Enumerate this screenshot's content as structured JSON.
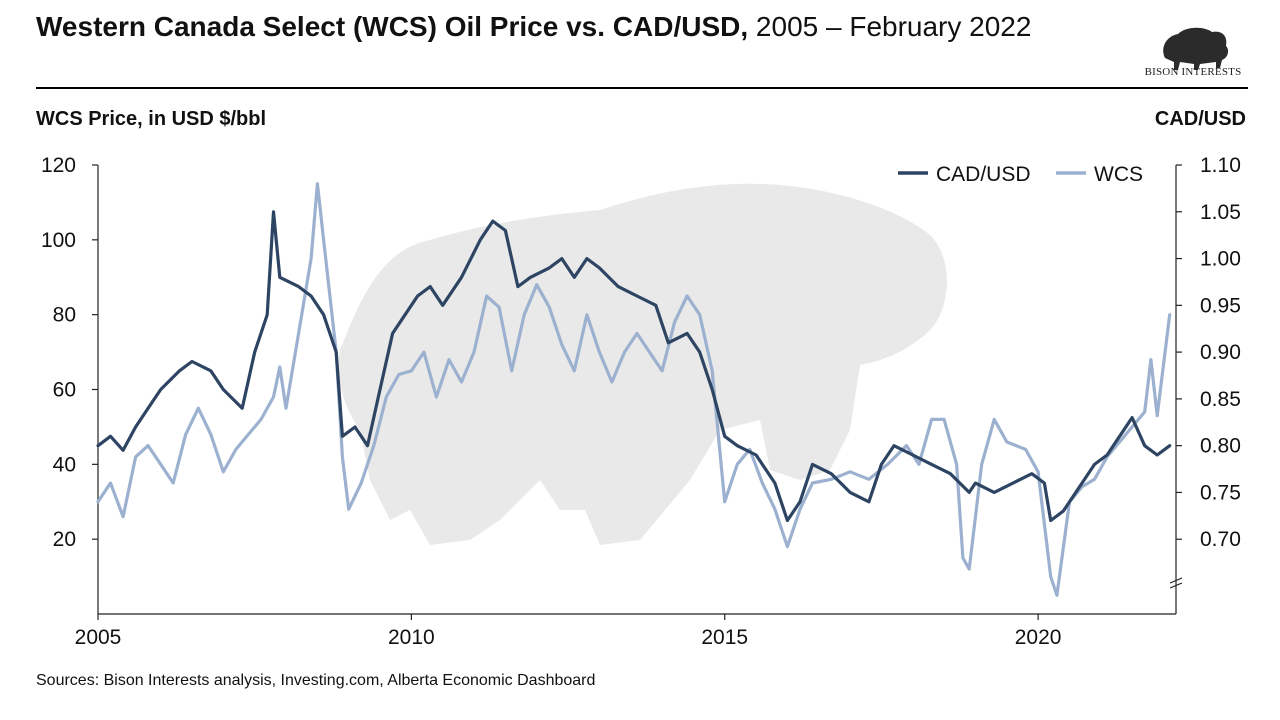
{
  "header": {
    "title_bold": "Western Canada Select (WCS) Oil Price vs. CAD/USD,",
    "title_rest": " 2005 – February 2022"
  },
  "logo": {
    "text": "BISON INTERESTS",
    "icon": "bison-icon"
  },
  "axes": {
    "left_title": "WCS Price, in USD $/bbl",
    "right_title": "CAD/USD"
  },
  "footer": {
    "source": "Sources: Bison Interests analysis, Investing.com, Alberta Economic Dashboard"
  },
  "colors": {
    "cad_usd": "#2d4463",
    "wcs": "#9cb1cf",
    "axis": "#222222",
    "watermark": "#e8e8e8"
  },
  "chart_data": {
    "type": "line",
    "x_range": [
      2005.0,
      2022.2
    ],
    "x_ticks": [
      "2005",
      "2010",
      "2015",
      "2020"
    ],
    "ylim_left": [
      0,
      120
    ],
    "yticks_left": [
      "20",
      "40",
      "60",
      "80",
      "100",
      "120"
    ],
    "ylim_right": [
      0.65,
      1.1
    ],
    "yticks_right": [
      "0.70",
      "0.75",
      "0.80",
      "0.85",
      "0.90",
      "0.95",
      "1.00",
      "1.05",
      "1.10"
    ],
    "legend": {
      "position": "top-right",
      "entries": [
        "CAD/USD",
        "WCS"
      ]
    },
    "grid": false,
    "series": [
      {
        "name": "CAD/USD",
        "axis": "right",
        "points": [
          [
            2005.0,
            0.8
          ],
          [
            2005.2,
            0.81
          ],
          [
            2005.4,
            0.795
          ],
          [
            2005.6,
            0.82
          ],
          [
            2005.8,
            0.84
          ],
          [
            2006.0,
            0.86
          ],
          [
            2006.3,
            0.88
          ],
          [
            2006.5,
            0.89
          ],
          [
            2006.8,
            0.88
          ],
          [
            2007.0,
            0.86
          ],
          [
            2007.3,
            0.84
          ],
          [
            2007.5,
            0.9
          ],
          [
            2007.7,
            0.94
          ],
          [
            2007.8,
            1.05
          ],
          [
            2007.9,
            0.98
          ],
          [
            2008.2,
            0.97
          ],
          [
            2008.4,
            0.96
          ],
          [
            2008.6,
            0.94
          ],
          [
            2008.8,
            0.9
          ],
          [
            2008.9,
            0.81
          ],
          [
            2009.1,
            0.82
          ],
          [
            2009.3,
            0.8
          ],
          [
            2009.5,
            0.86
          ],
          [
            2009.7,
            0.92
          ],
          [
            2009.9,
            0.94
          ],
          [
            2010.1,
            0.96
          ],
          [
            2010.3,
            0.97
          ],
          [
            2010.5,
            0.95
          ],
          [
            2010.8,
            0.98
          ],
          [
            2011.1,
            1.02
          ],
          [
            2011.3,
            1.04
          ],
          [
            2011.5,
            1.03
          ],
          [
            2011.7,
            0.97
          ],
          [
            2011.9,
            0.98
          ],
          [
            2012.2,
            0.99
          ],
          [
            2012.4,
            1.0
          ],
          [
            2012.6,
            0.98
          ],
          [
            2012.8,
            1.0
          ],
          [
            2013.0,
            0.99
          ],
          [
            2013.3,
            0.97
          ],
          [
            2013.6,
            0.96
          ],
          [
            2013.9,
            0.95
          ],
          [
            2014.1,
            0.91
          ],
          [
            2014.4,
            0.92
          ],
          [
            2014.6,
            0.9
          ],
          [
            2014.8,
            0.86
          ],
          [
            2015.0,
            0.81
          ],
          [
            2015.2,
            0.8
          ],
          [
            2015.5,
            0.79
          ],
          [
            2015.8,
            0.76
          ],
          [
            2016.0,
            0.72
          ],
          [
            2016.2,
            0.74
          ],
          [
            2016.4,
            0.78
          ],
          [
            2016.7,
            0.77
          ],
          [
            2017.0,
            0.75
          ],
          [
            2017.3,
            0.74
          ],
          [
            2017.5,
            0.78
          ],
          [
            2017.7,
            0.8
          ],
          [
            2018.0,
            0.79
          ],
          [
            2018.3,
            0.78
          ],
          [
            2018.6,
            0.77
          ],
          [
            2018.9,
            0.75
          ],
          [
            2019.0,
            0.76
          ],
          [
            2019.3,
            0.75
          ],
          [
            2019.6,
            0.76
          ],
          [
            2019.9,
            0.77
          ],
          [
            2020.1,
            0.76
          ],
          [
            2020.2,
            0.72
          ],
          [
            2020.4,
            0.73
          ],
          [
            2020.7,
            0.76
          ],
          [
            2020.9,
            0.78
          ],
          [
            2021.1,
            0.79
          ],
          [
            2021.3,
            0.81
          ],
          [
            2021.5,
            0.83
          ],
          [
            2021.7,
            0.8
          ],
          [
            2021.9,
            0.79
          ],
          [
            2022.1,
            0.8
          ]
        ]
      },
      {
        "name": "WCS",
        "axis": "left",
        "points": [
          [
            2005.0,
            30
          ],
          [
            2005.2,
            35
          ],
          [
            2005.4,
            26
          ],
          [
            2005.6,
            42
          ],
          [
            2005.8,
            45
          ],
          [
            2006.0,
            40
          ],
          [
            2006.2,
            35
          ],
          [
            2006.4,
            48
          ],
          [
            2006.6,
            55
          ],
          [
            2006.8,
            48
          ],
          [
            2007.0,
            38
          ],
          [
            2007.2,
            44
          ],
          [
            2007.4,
            48
          ],
          [
            2007.6,
            52
          ],
          [
            2007.8,
            58
          ],
          [
            2007.9,
            66
          ],
          [
            2008.0,
            55
          ],
          [
            2008.2,
            75
          ],
          [
            2008.4,
            95
          ],
          [
            2008.5,
            115
          ],
          [
            2008.6,
            100
          ],
          [
            2008.8,
            70
          ],
          [
            2008.9,
            42
          ],
          [
            2009.0,
            28
          ],
          [
            2009.2,
            35
          ],
          [
            2009.4,
            45
          ],
          [
            2009.6,
            58
          ],
          [
            2009.8,
            64
          ],
          [
            2010.0,
            65
          ],
          [
            2010.2,
            70
          ],
          [
            2010.4,
            58
          ],
          [
            2010.6,
            68
          ],
          [
            2010.8,
            62
          ],
          [
            2011.0,
            70
          ],
          [
            2011.2,
            85
          ],
          [
            2011.4,
            82
          ],
          [
            2011.6,
            65
          ],
          [
            2011.8,
            80
          ],
          [
            2012.0,
            88
          ],
          [
            2012.2,
            82
          ],
          [
            2012.4,
            72
          ],
          [
            2012.6,
            65
          ],
          [
            2012.8,
            80
          ],
          [
            2013.0,
            70
          ],
          [
            2013.2,
            62
          ],
          [
            2013.4,
            70
          ],
          [
            2013.6,
            75
          ],
          [
            2013.8,
            70
          ],
          [
            2014.0,
            65
          ],
          [
            2014.2,
            78
          ],
          [
            2014.4,
            85
          ],
          [
            2014.6,
            80
          ],
          [
            2014.8,
            65
          ],
          [
            2015.0,
            30
          ],
          [
            2015.2,
            40
          ],
          [
            2015.4,
            44
          ],
          [
            2015.6,
            35
          ],
          [
            2015.8,
            28
          ],
          [
            2016.0,
            18
          ],
          [
            2016.2,
            28
          ],
          [
            2016.4,
            35
          ],
          [
            2016.7,
            36
          ],
          [
            2017.0,
            38
          ],
          [
            2017.3,
            36
          ],
          [
            2017.6,
            40
          ],
          [
            2017.9,
            45
          ],
          [
            2018.1,
            40
          ],
          [
            2018.3,
            52
          ],
          [
            2018.5,
            52
          ],
          [
            2018.7,
            40
          ],
          [
            2018.8,
            15
          ],
          [
            2018.9,
            12
          ],
          [
            2019.1,
            40
          ],
          [
            2019.3,
            52
          ],
          [
            2019.5,
            46
          ],
          [
            2019.8,
            44
          ],
          [
            2020.0,
            38
          ],
          [
            2020.2,
            10
          ],
          [
            2020.3,
            5
          ],
          [
            2020.5,
            30
          ],
          [
            2020.7,
            34
          ],
          [
            2020.9,
            36
          ],
          [
            2021.1,
            42
          ],
          [
            2021.3,
            46
          ],
          [
            2021.5,
            50
          ],
          [
            2021.7,
            54
          ],
          [
            2021.8,
            68
          ],
          [
            2021.9,
            53
          ],
          [
            2022.1,
            80
          ]
        ]
      }
    ]
  }
}
